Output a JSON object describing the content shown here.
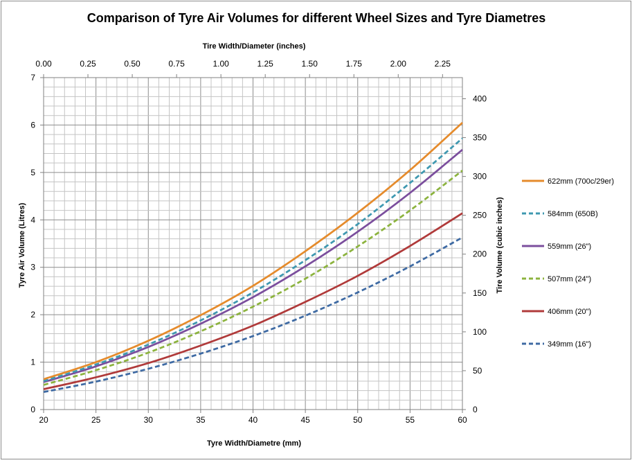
{
  "chart_data": {
    "type": "line",
    "title": "Comparison of Tyre Air Volumes for different Wheel Sizes and Tyre Diametres",
    "xlabel": "Tyre Width/Diametre (mm)",
    "ylabel": "Tyre Air Volume (Litres)",
    "x2label": "Tire Width/Diameter (inches)",
    "y2label": "Tire Volume (cubic inches)",
    "xlim": [
      20,
      60
    ],
    "ylim": [
      0,
      7
    ],
    "x2lim": [
      0,
      2.362
    ],
    "y2lim": [
      0,
      427.2
    ],
    "x_ticks": [
      "20",
      "25",
      "30",
      "35",
      "40",
      "45",
      "50",
      "55",
      "60"
    ],
    "y_ticks": [
      "0",
      "1",
      "2",
      "3",
      "4",
      "5",
      "6",
      "7"
    ],
    "x2_ticks": [
      "0.00",
      "0.25",
      "0.50",
      "0.75",
      "1.00",
      "1.25",
      "1.50",
      "1.75",
      "2.00",
      "2.25"
    ],
    "y2_ticks": [
      "0",
      "50",
      "100",
      "150",
      "200",
      "250",
      "300",
      "350",
      "400"
    ],
    "grid": true,
    "legend_position": "right",
    "x": [
      20,
      25,
      30,
      35,
      40,
      45,
      50,
      55,
      60
    ],
    "series": [
      {
        "name": "622mm (700c/29er)",
        "color": "#e58b2c",
        "dash": false,
        "values": [
          0.64,
          1.0,
          1.45,
          1.99,
          2.61,
          3.34,
          4.15,
          5.05,
          6.05
        ]
      },
      {
        "name": "584mm (650B)",
        "color": "#3e98b0",
        "dash": true,
        "values": [
          0.6,
          0.95,
          1.37,
          1.88,
          2.47,
          3.15,
          3.91,
          4.78,
          5.72
        ]
      },
      {
        "name": "559mm (26\")",
        "color": "#7b4e9d",
        "dash": false,
        "values": [
          0.58,
          0.91,
          1.32,
          1.81,
          2.37,
          3.02,
          3.75,
          4.57,
          5.48
        ]
      },
      {
        "name": "507mm (24\")",
        "color": "#8cb33e",
        "dash": true,
        "values": [
          0.52,
          0.83,
          1.2,
          1.65,
          2.17,
          2.76,
          3.44,
          4.2,
          5.04
        ]
      },
      {
        "name": "406mm (20\")",
        "color": "#b03a3a",
        "dash": false,
        "values": [
          0.43,
          0.68,
          0.98,
          1.35,
          1.77,
          2.27,
          2.82,
          3.45,
          4.14
        ]
      },
      {
        "name": "349mm (16\")",
        "color": "#3e6aa3",
        "dash": true,
        "values": [
          0.37,
          0.59,
          0.86,
          1.18,
          1.55,
          1.98,
          2.47,
          3.02,
          3.63
        ]
      }
    ]
  }
}
